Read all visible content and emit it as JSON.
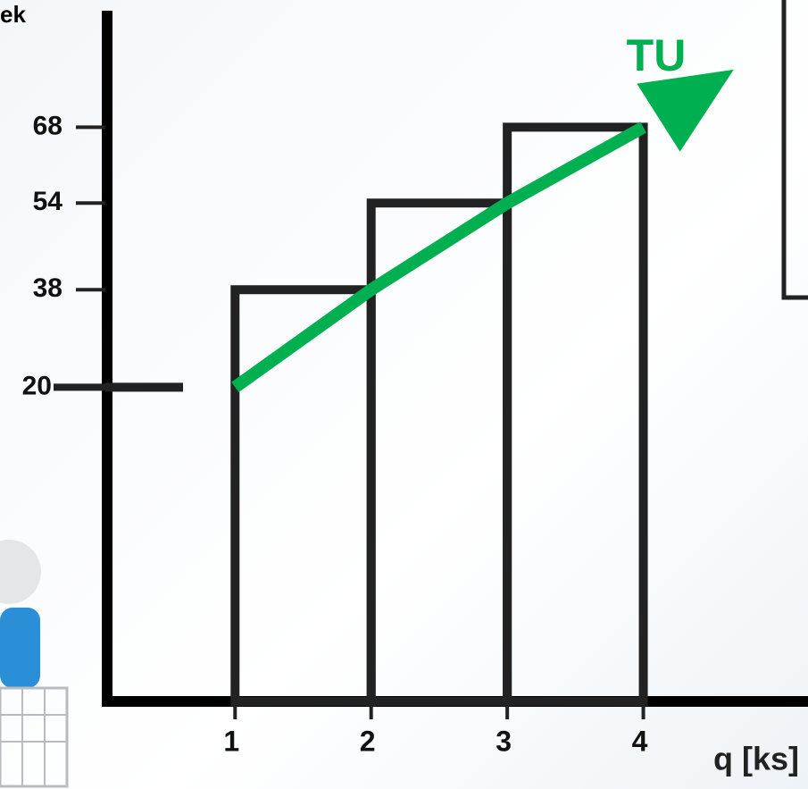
{
  "chart_data": {
    "type": "step",
    "y_label": "ek",
    "x_label": "q [ks]",
    "annotation": "TU",
    "x": [
      1,
      2,
      3,
      4
    ],
    "values": [
      20,
      38,
      54,
      68
    ],
    "color": "#222222",
    "arrow_color": "#00b050",
    "xlim": [
      0.06,
      5.21
    ],
    "ylim": [
      -38,
      89.5
    ],
    "xticks": [
      1,
      2,
      3,
      4
    ],
    "yticks": [
      20,
      38,
      54,
      68
    ]
  }
}
